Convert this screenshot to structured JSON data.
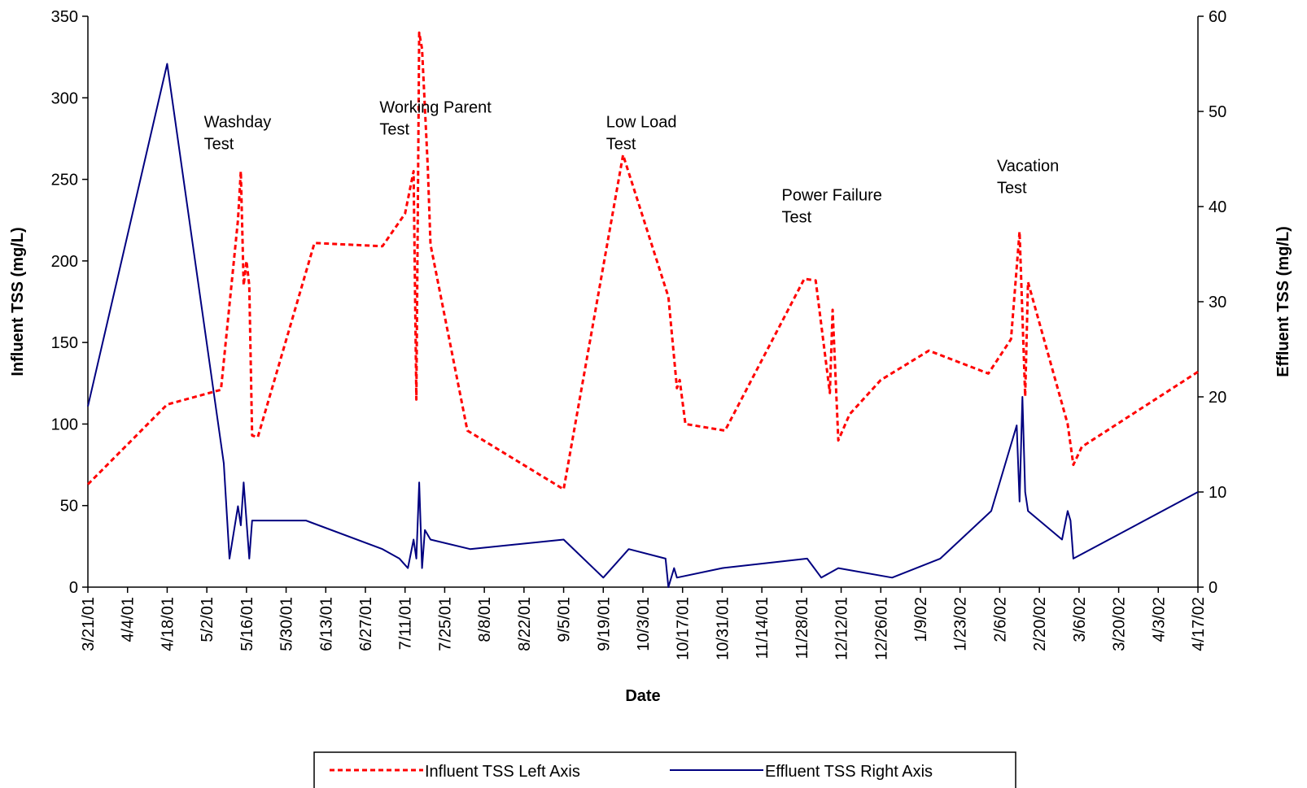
{
  "chart_data": {
    "type": "line",
    "xlabel": "Date",
    "ylabel_left": "Influent TSS (mg/L)",
    "ylabel_right": "Effluent TSS (mg/L)",
    "x_range": [
      "3/21/01",
      "4/17/02"
    ],
    "ylim_left": [
      0,
      350
    ],
    "ylim_right": [
      0,
      60
    ],
    "yticks_left": [
      0,
      50,
      100,
      150,
      200,
      250,
      300,
      350
    ],
    "yticks_right": [
      0,
      10,
      20,
      30,
      40,
      50,
      60
    ],
    "x_tick_labels": [
      "3/21/01",
      "4/4/01",
      "4/18/01",
      "5/2/01",
      "5/16/01",
      "5/30/01",
      "6/13/01",
      "6/27/01",
      "7/11/01",
      "7/25/01",
      "8/8/01",
      "8/22/01",
      "9/5/01",
      "9/19/01",
      "10/3/01",
      "10/17/01",
      "10/31/01",
      "11/14/01",
      "11/28/01",
      "12/12/01",
      "12/26/01",
      "1/9/02",
      "1/23/02",
      "2/6/02",
      "2/20/02",
      "3/6/02",
      "3/20/02",
      "4/3/02",
      "4/17/02"
    ],
    "grid": false,
    "legend_position": "bottom-center",
    "series": [
      {
        "name": "Influent TSS Left Axis",
        "axis": "left",
        "color": "#ff0000",
        "dash": "dashed",
        "points": [
          [
            "3/21/01",
            63
          ],
          [
            "4/18/01",
            112
          ],
          [
            "5/7/01",
            121
          ],
          [
            "5/13/01",
            225
          ],
          [
            "5/14/01",
            255
          ],
          [
            "5/15/01",
            185
          ],
          [
            "5/16/01",
            200
          ],
          [
            "5/17/01",
            185
          ],
          [
            "5/18/01",
            93
          ],
          [
            "5/20/01",
            92
          ],
          [
            "6/9/01",
            211
          ],
          [
            "7/3/01",
            209
          ],
          [
            "7/11/01",
            229
          ],
          [
            "7/14/01",
            255
          ],
          [
            "7/15/01",
            115
          ],
          [
            "7/16/01",
            340
          ],
          [
            "7/17/01",
            330
          ],
          [
            "7/19/01",
            258
          ],
          [
            "7/20/01",
            210
          ],
          [
            "8/2/01",
            96
          ],
          [
            "9/5/01",
            60
          ],
          [
            "9/26/01",
            265
          ],
          [
            "10/12/01",
            178
          ],
          [
            "10/15/01",
            122
          ],
          [
            "10/16/01",
            127
          ],
          [
            "10/18/01",
            100
          ],
          [
            "11/1/01",
            96
          ],
          [
            "11/29/01",
            189
          ],
          [
            "12/3/01",
            188
          ],
          [
            "12/8/01",
            119
          ],
          [
            "12/9/01",
            170
          ],
          [
            "12/11/01",
            90
          ],
          [
            "12/15/01",
            106
          ],
          [
            "12/26/01",
            127
          ],
          [
            "1/12/02",
            145
          ],
          [
            "2/2/02",
            131
          ],
          [
            "2/10/02",
            152
          ],
          [
            "2/13/02",
            218
          ],
          [
            "2/15/02",
            117
          ],
          [
            "2/16/02",
            187
          ],
          [
            "3/2/02",
            100
          ],
          [
            "3/4/02",
            75
          ],
          [
            "3/7/02",
            86
          ],
          [
            "4/17/02",
            132
          ]
        ]
      },
      {
        "name": "Effluent TSS Right Axis",
        "axis": "right",
        "color": "#000080",
        "dash": "solid",
        "points": [
          [
            "3/21/01",
            19
          ],
          [
            "4/18/01",
            55
          ],
          [
            "5/8/01",
            13
          ],
          [
            "5/10/01",
            3
          ],
          [
            "5/13/01",
            8.5
          ],
          [
            "5/14/01",
            6.5
          ],
          [
            "5/15/01",
            11
          ],
          [
            "5/17/01",
            3
          ],
          [
            "5/18/01",
            7
          ],
          [
            "6/6/01",
            7
          ],
          [
            "7/3/01",
            4
          ],
          [
            "7/9/01",
            3
          ],
          [
            "7/12/01",
            2
          ],
          [
            "7/14/01",
            5
          ],
          [
            "7/15/01",
            3
          ],
          [
            "7/16/01",
            11
          ],
          [
            "7/17/01",
            2
          ],
          [
            "7/18/01",
            6
          ],
          [
            "7/20/01",
            5
          ],
          [
            "8/3/01",
            4
          ],
          [
            "9/5/01",
            5
          ],
          [
            "9/19/01",
            1
          ],
          [
            "9/28/01",
            4
          ],
          [
            "10/11/01",
            3
          ],
          [
            "10/12/01",
            0
          ],
          [
            "10/14/01",
            2
          ],
          [
            "10/15/01",
            1
          ],
          [
            "10/31/01",
            2
          ],
          [
            "11/30/01",
            3
          ],
          [
            "12/5/01",
            1
          ],
          [
            "12/11/01",
            2
          ],
          [
            "12/30/01",
            1
          ],
          [
            "1/16/02",
            3
          ],
          [
            "2/3/02",
            8
          ],
          [
            "2/12/02",
            17
          ],
          [
            "2/13/02",
            9
          ],
          [
            "2/14/02",
            20
          ],
          [
            "2/15/02",
            10
          ],
          [
            "2/16/02",
            8
          ],
          [
            "2/28/02",
            5
          ],
          [
            "3/2/02",
            8
          ],
          [
            "3/3/02",
            7
          ],
          [
            "3/4/02",
            3
          ],
          [
            "4/17/02",
            10
          ]
        ]
      }
    ],
    "annotations": [
      {
        "text": [
          "Washday",
          "Test"
        ],
        "x": "5/1/01",
        "y": 282
      },
      {
        "text": [
          "Working Parent",
          "Test"
        ],
        "x": "7/2/01",
        "y": 291
      },
      {
        "text": [
          "Low Load",
          "Test"
        ],
        "x": "9/20/01",
        "y": 282
      },
      {
        "text": [
          "Power Failure",
          "Test"
        ],
        "x": "11/21/01",
        "y": 237
      },
      {
        "text": [
          "Vacation",
          "Test"
        ],
        "x": "2/5/02",
        "y": 255
      }
    ]
  }
}
